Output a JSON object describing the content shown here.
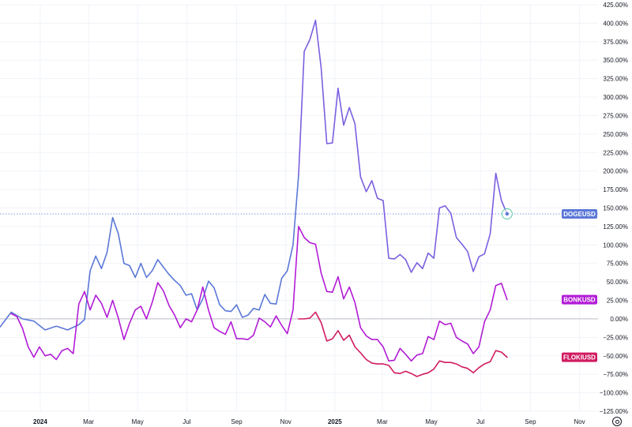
{
  "chart_data": {
    "type": "line",
    "y_unit": "%",
    "ylim": [
      -125,
      425
    ],
    "y_ticks": [
      425,
      400,
      375,
      350,
      325,
      300,
      275,
      250,
      225,
      200,
      175,
      150,
      125,
      100,
      75,
      50,
      25,
      0,
      -25,
      -50,
      -75,
      -100,
      -125
    ],
    "y_tick_labels": [
      "425.00%",
      "400.00%",
      "375.00%",
      "350.00%",
      "325.00%",
      "300.00%",
      "275.00%",
      "250.00%",
      "225.00%",
      "200.00%",
      "175.00%",
      "150.00%",
      "125.00%",
      "100.00%",
      "75.00%",
      "50.00%",
      "25.00%",
      "0.00%",
      "−25.00%",
      "−50.00%",
      "−75.00%",
      "−100.00%",
      "−125.00%"
    ],
    "x_range": [
      "2023-11-12",
      "2025-11-24"
    ],
    "x_ticks": [
      {
        "date": "2024-01-01",
        "label": "2024",
        "year": true
      },
      {
        "date": "2024-03-01",
        "label": "Mar",
        "year": false
      },
      {
        "date": "2024-05-01",
        "label": "May",
        "year": false
      },
      {
        "date": "2024-07-01",
        "label": "Jul",
        "year": false
      },
      {
        "date": "2024-09-01",
        "label": "Sep",
        "year": false
      },
      {
        "date": "2024-11-01",
        "label": "Nov",
        "year": false
      },
      {
        "date": "2025-01-01",
        "label": "2025",
        "year": true
      },
      {
        "date": "2025-03-01",
        "label": "Mar",
        "year": false
      },
      {
        "date": "2025-05-01",
        "label": "May",
        "year": false
      },
      {
        "date": "2025-07-01",
        "label": "Jul",
        "year": false
      },
      {
        "date": "2025-09-01",
        "label": "Sep",
        "year": false
      },
      {
        "date": "2025-11-01",
        "label": "Nov",
        "year": false
      }
    ],
    "zero_line": true,
    "crosshair_value": 142,
    "series": [
      {
        "name": "DOGEUSD",
        "color": "#5b78d8",
        "points": [
          [
            "2023-11-12",
            -11
          ],
          [
            "2023-11-26",
            9
          ],
          [
            "2023-12-10",
            0
          ],
          [
            "2023-12-24",
            -3
          ],
          [
            "2024-01-07",
            -15
          ],
          [
            "2024-01-21",
            -10
          ],
          [
            "2024-02-04",
            -15
          ],
          [
            "2024-02-18",
            -8
          ],
          [
            "2024-02-25",
            -1
          ],
          [
            "2024-03-03",
            65
          ],
          [
            "2024-03-10",
            85
          ],
          [
            "2024-03-17",
            68
          ],
          [
            "2024-03-24",
            90
          ],
          [
            "2024-03-31",
            137
          ],
          [
            "2024-04-07",
            115
          ],
          [
            "2024-04-14",
            75
          ],
          [
            "2024-04-21",
            72
          ],
          [
            "2024-04-28",
            56
          ],
          [
            "2024-05-05",
            75
          ],
          [
            "2024-05-12",
            56
          ],
          [
            "2024-05-19",
            65
          ],
          [
            "2024-05-26",
            80
          ],
          [
            "2024-06-02",
            70
          ],
          [
            "2024-06-09",
            60
          ],
          [
            "2024-06-16",
            52
          ],
          [
            "2024-06-23",
            45
          ],
          [
            "2024-06-30",
            32
          ],
          [
            "2024-07-07",
            34
          ],
          [
            "2024-07-14",
            12
          ],
          [
            "2024-07-21",
            27
          ],
          [
            "2024-07-28",
            51
          ],
          [
            "2024-08-04",
            42
          ],
          [
            "2024-08-11",
            19
          ],
          [
            "2024-08-18",
            11
          ],
          [
            "2024-08-25",
            10
          ],
          [
            "2024-09-01",
            19
          ],
          [
            "2024-09-08",
            2
          ],
          [
            "2024-09-15",
            5
          ],
          [
            "2024-09-22",
            14
          ],
          [
            "2024-09-29",
            12
          ],
          [
            "2024-10-06",
            33
          ],
          [
            "2024-10-13",
            21
          ],
          [
            "2024-10-20",
            20
          ],
          [
            "2024-10-27",
            55
          ],
          [
            "2024-11-03",
            65
          ],
          [
            "2024-11-10",
            100
          ],
          [
            "2024-11-17",
            195
          ]
        ]
      },
      {
        "name": "DOGEUSD_cont",
        "color": "#7b5fe0",
        "points": [
          [
            "2024-11-17",
            195
          ],
          [
            "2024-11-24",
            362
          ],
          [
            "2024-12-01",
            378
          ],
          [
            "2024-12-08",
            404
          ],
          [
            "2024-12-15",
            340
          ],
          [
            "2024-12-22",
            237
          ],
          [
            "2024-12-29",
            238
          ],
          [
            "2025-01-05",
            312
          ],
          [
            "2025-01-12",
            262
          ],
          [
            "2025-01-19",
            286
          ],
          [
            "2025-01-26",
            264
          ],
          [
            "2025-02-02",
            192
          ],
          [
            "2025-02-09",
            172
          ],
          [
            "2025-02-16",
            187
          ],
          [
            "2025-02-23",
            163
          ],
          [
            "2025-03-02",
            160
          ],
          [
            "2025-03-09",
            82
          ],
          [
            "2025-03-16",
            81
          ],
          [
            "2025-03-23",
            87
          ],
          [
            "2025-03-30",
            80
          ],
          [
            "2025-04-06",
            63
          ],
          [
            "2025-04-13",
            76
          ],
          [
            "2025-04-20",
            68
          ],
          [
            "2025-04-27",
            89
          ],
          [
            "2025-05-04",
            82
          ],
          [
            "2025-05-11",
            150
          ],
          [
            "2025-05-18",
            153
          ],
          [
            "2025-05-25",
            143
          ],
          [
            "2025-06-01",
            110
          ],
          [
            "2025-06-08",
            101
          ],
          [
            "2025-06-15",
            91
          ],
          [
            "2025-06-22",
            64
          ],
          [
            "2025-06-29",
            84
          ],
          [
            "2025-07-06",
            88
          ],
          [
            "2025-07-13",
            115
          ],
          [
            "2025-07-20",
            197
          ],
          [
            "2025-07-27",
            160
          ],
          [
            "2025-08-03",
            142
          ]
        ]
      },
      {
        "name": "BONKUSD",
        "color": "#b21bd6",
        "points": [
          [
            "2023-11-26",
            7
          ],
          [
            "2023-12-03",
            3
          ],
          [
            "2023-12-10",
            -13
          ],
          [
            "2023-12-17",
            -38
          ],
          [
            "2023-12-24",
            -52
          ],
          [
            "2023-12-31",
            -38
          ],
          [
            "2024-01-07",
            -50
          ],
          [
            "2024-01-14",
            -48
          ],
          [
            "2024-01-21",
            -55
          ],
          [
            "2024-01-28",
            -43
          ],
          [
            "2024-02-04",
            -40
          ],
          [
            "2024-02-11",
            -47
          ],
          [
            "2024-02-18",
            20
          ],
          [
            "2024-02-25",
            37
          ],
          [
            "2024-03-03",
            12
          ],
          [
            "2024-03-10",
            32
          ],
          [
            "2024-03-17",
            21
          ],
          [
            "2024-03-24",
            2
          ],
          [
            "2024-03-31",
            25
          ],
          [
            "2024-04-07",
            1
          ],
          [
            "2024-04-14",
            -28
          ],
          [
            "2024-04-21",
            -6
          ],
          [
            "2024-04-28",
            12
          ],
          [
            "2024-05-05",
            17
          ],
          [
            "2024-05-12",
            0
          ],
          [
            "2024-05-19",
            22
          ],
          [
            "2024-05-26",
            49
          ],
          [
            "2024-06-02",
            38
          ],
          [
            "2024-06-09",
            18
          ],
          [
            "2024-06-16",
            5
          ],
          [
            "2024-06-23",
            -12
          ],
          [
            "2024-06-30",
            0
          ],
          [
            "2024-07-07",
            -4
          ],
          [
            "2024-07-14",
            12
          ],
          [
            "2024-07-21",
            43
          ],
          [
            "2024-07-28",
            12
          ],
          [
            "2024-08-04",
            -12
          ],
          [
            "2024-08-11",
            -17
          ],
          [
            "2024-08-18",
            -21
          ],
          [
            "2024-08-25",
            -4
          ],
          [
            "2024-09-01",
            -27
          ],
          [
            "2024-09-08",
            -27
          ],
          [
            "2024-09-15",
            -28
          ],
          [
            "2024-09-22",
            -22
          ],
          [
            "2024-09-29",
            1
          ],
          [
            "2024-10-06",
            -4
          ],
          [
            "2024-10-13",
            -11
          ],
          [
            "2024-10-20",
            4
          ],
          [
            "2024-10-27",
            -9
          ],
          [
            "2024-11-03",
            -20
          ],
          [
            "2024-11-10",
            12
          ],
          [
            "2024-11-17",
            125
          ],
          [
            "2024-11-24",
            110
          ],
          [
            "2024-12-01",
            103
          ],
          [
            "2024-12-08",
            101
          ],
          [
            "2024-12-15",
            62
          ],
          [
            "2024-12-22",
            37
          ],
          [
            "2024-12-29",
            36
          ],
          [
            "2025-01-05",
            57
          ],
          [
            "2025-01-12",
            27
          ],
          [
            "2025-01-19",
            43
          ],
          [
            "2025-01-26",
            22
          ],
          [
            "2025-02-02",
            -12
          ],
          [
            "2025-02-09",
            -23
          ],
          [
            "2025-02-16",
            -28
          ],
          [
            "2025-02-23",
            -28
          ],
          [
            "2025-03-02",
            -38
          ],
          [
            "2025-03-09",
            -57
          ],
          [
            "2025-03-16",
            -56
          ],
          [
            "2025-03-23",
            -40
          ],
          [
            "2025-03-30",
            -48
          ],
          [
            "2025-04-06",
            -57
          ],
          [
            "2025-04-13",
            -49
          ],
          [
            "2025-04-20",
            -47
          ],
          [
            "2025-04-27",
            -24
          ],
          [
            "2025-05-04",
            -28
          ],
          [
            "2025-05-11",
            -3
          ],
          [
            "2025-05-18",
            -8
          ],
          [
            "2025-05-25",
            -6
          ],
          [
            "2025-06-01",
            -25
          ],
          [
            "2025-06-08",
            -30
          ],
          [
            "2025-06-15",
            -34
          ],
          [
            "2025-06-22",
            -47
          ],
          [
            "2025-06-29",
            -38
          ],
          [
            "2025-07-06",
            -4
          ],
          [
            "2025-07-13",
            12
          ],
          [
            "2025-07-20",
            45
          ],
          [
            "2025-07-27",
            48
          ],
          [
            "2025-08-03",
            26
          ]
        ]
      },
      {
        "name": "FLOKIUSD",
        "color": "#d11b60",
        "points": [
          [
            "2024-11-17",
            0
          ],
          [
            "2024-11-24",
            0
          ],
          [
            "2024-12-01",
            1
          ],
          [
            "2024-12-08",
            9
          ],
          [
            "2024-12-15",
            -5
          ],
          [
            "2024-12-22",
            -30
          ],
          [
            "2024-12-29",
            -27
          ],
          [
            "2025-01-05",
            -16
          ],
          [
            "2025-01-12",
            -29
          ],
          [
            "2025-01-19",
            -22
          ],
          [
            "2025-01-26",
            -38
          ],
          [
            "2025-02-02",
            -46
          ],
          [
            "2025-02-09",
            -55
          ],
          [
            "2025-02-16",
            -60
          ],
          [
            "2025-02-23",
            -61
          ],
          [
            "2025-03-02",
            -61
          ],
          [
            "2025-03-09",
            -63
          ],
          [
            "2025-03-16",
            -73
          ],
          [
            "2025-03-23",
            -74
          ],
          [
            "2025-03-30",
            -71
          ],
          [
            "2025-04-06",
            -74
          ],
          [
            "2025-04-13",
            -78
          ],
          [
            "2025-04-20",
            -75
          ],
          [
            "2025-04-27",
            -73
          ],
          [
            "2025-05-04",
            -68
          ],
          [
            "2025-05-11",
            -57
          ],
          [
            "2025-05-18",
            -59
          ],
          [
            "2025-05-25",
            -59
          ],
          [
            "2025-06-01",
            -61
          ],
          [
            "2025-06-08",
            -65
          ],
          [
            "2025-06-15",
            -67
          ],
          [
            "2025-06-22",
            -73
          ],
          [
            "2025-06-29",
            -66
          ],
          [
            "2025-07-06",
            -61
          ],
          [
            "2025-07-13",
            -58
          ],
          [
            "2025-07-20",
            -43
          ],
          [
            "2025-07-27",
            -45
          ],
          [
            "2025-08-03",
            -52
          ]
        ]
      }
    ],
    "price_tags": [
      {
        "label": "DOGEUSD",
        "value": 142,
        "color": "#5b78d8"
      },
      {
        "label": "BONKUSD",
        "value": 26,
        "color": "#b21bd6"
      },
      {
        "label": "FLOKIUSD",
        "value": -52,
        "color": "#d11b60"
      }
    ]
  }
}
